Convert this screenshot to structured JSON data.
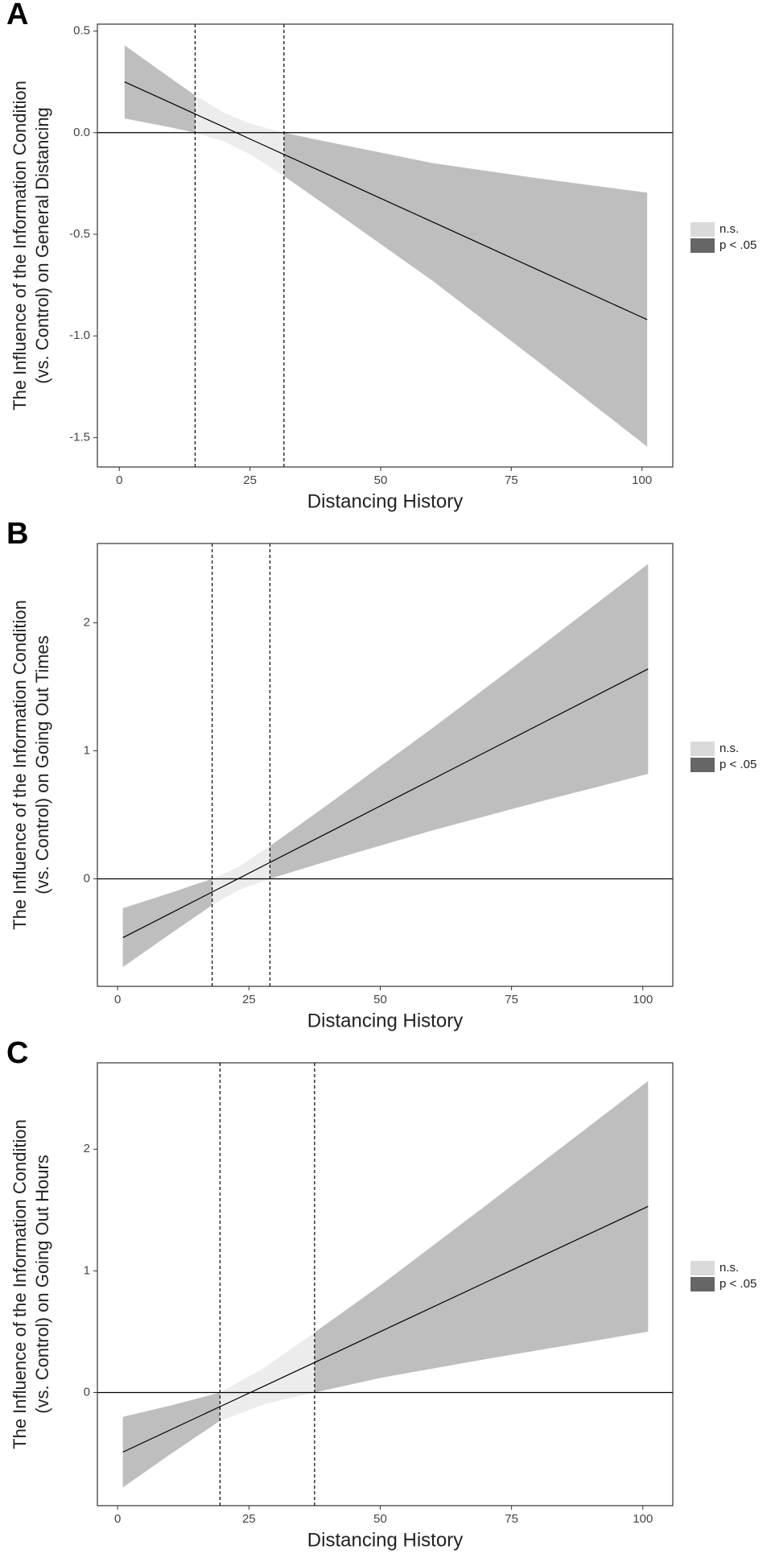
{
  "chart_data": [
    {
      "type": "jn",
      "panel": "A",
      "ylabel": [
        "The Influence of the Information Condition",
        "(vs. Control) on General Distancing"
      ],
      "xlabel": "Distancing History",
      "x": [
        1,
        10,
        14.5,
        20,
        25,
        31.5,
        40,
        60,
        80,
        101
      ],
      "estimate": [
        0.25,
        0.145,
        0.092,
        0.028,
        -0.031,
        -0.107,
        -0.206,
        -0.44,
        -0.674,
        -0.92
      ],
      "upper": [
        0.43,
        0.265,
        0.184,
        0.098,
        0.044,
        0,
        -0.046,
        -0.15,
        -0.224,
        -0.295
      ],
      "lower": [
        0.07,
        0.025,
        0,
        -0.042,
        -0.106,
        -0.214,
        -0.366,
        -0.73,
        -1.124,
        -1.545
      ],
      "jn_points": [
        14.5,
        31.5
      ],
      "hline": 0,
      "xlim": [
        -4.2,
        105.9
      ],
      "ylim": [
        -1.645,
        0.534
      ],
      "xticks": [
        0,
        25,
        50,
        75,
        100
      ],
      "yticks": [
        0.5,
        {
          "value": 0,
          "label": "0.0"
        },
        -0.5,
        {
          "value": -1,
          "label": "-1.0"
        },
        -1.5
      ],
      "line_color": "#000000",
      "ns_band_color": "#ececec",
      "sig_band_color": "#bebebe",
      "legend": [
        {
          "name": "n.s.",
          "color": "#dadada"
        },
        {
          "name": "p < .05",
          "color": "#666666"
        }
      ]
    },
    {
      "type": "jn",
      "panel": "B",
      "ylabel": [
        "The Influence of the Information Condition",
        "(vs. Control) on Going Out Times"
      ],
      "xlabel": "Distancing History",
      "x": [
        1,
        10,
        18,
        23,
        29,
        40,
        60,
        80,
        101
      ],
      "estimate": [
        -0.46,
        -0.271,
        -0.103,
        0.002,
        0.128,
        0.359,
        0.779,
        1.199,
        1.64
      ],
      "upper": [
        -0.23,
        -0.111,
        0,
        0.092,
        0.256,
        0.579,
        1.179,
        1.799,
        2.46
      ],
      "lower": [
        -0.69,
        -0.431,
        -0.206,
        -0.088,
        0,
        0.139,
        0.379,
        0.599,
        0.82
      ],
      "jn_points": [
        18,
        29
      ],
      "hline": 0,
      "xlim": [
        -3.85,
        105.7
      ],
      "ylim": [
        -0.84,
        2.62
      ],
      "xticks": [
        0,
        25,
        50,
        75,
        100
      ],
      "yticks": [
        0,
        1,
        2
      ],
      "line_color": "#000000",
      "ns_band_color": "#ececec",
      "sig_band_color": "#bebebe",
      "legend": [
        {
          "name": "n.s.",
          "color": "#dadada"
        },
        {
          "name": "p < .05",
          "color": "#666666"
        }
      ]
    },
    {
      "type": "jn",
      "panel": "C",
      "ylabel": [
        "The Influence of the Information Condition",
        "(vs. Control) on Going Out Hours"
      ],
      "xlabel": "Distancing History",
      "x": [
        1,
        10,
        19.5,
        28,
        37.5,
        50,
        70,
        101
      ],
      "estimate": [
        -0.49,
        -0.308,
        -0.116,
        0.055,
        0.247,
        0.5,
        0.904,
        1.53
      ],
      "upper": [
        -0.2,
        -0.108,
        0,
        0.205,
        0.494,
        0.88,
        1.534,
        2.56
      ],
      "lower": [
        -0.78,
        -0.508,
        -0.232,
        -0.095,
        0,
        0.12,
        0.274,
        0.5
      ],
      "jn_points": [
        19.5,
        37.5
      ],
      "hline": 0,
      "xlim": [
        -3.85,
        105.7
      ],
      "ylim": [
        -0.93,
        2.71
      ],
      "xticks": [
        0,
        25,
        50,
        75,
        100
      ],
      "yticks": [
        0,
        1,
        2
      ],
      "line_color": "#000000",
      "ns_band_color": "#ececec",
      "sig_band_color": "#bebebe",
      "legend": [
        {
          "name": "n.s.",
          "color": "#dadada"
        },
        {
          "name": "p < .05",
          "color": "#666666"
        }
      ]
    }
  ]
}
